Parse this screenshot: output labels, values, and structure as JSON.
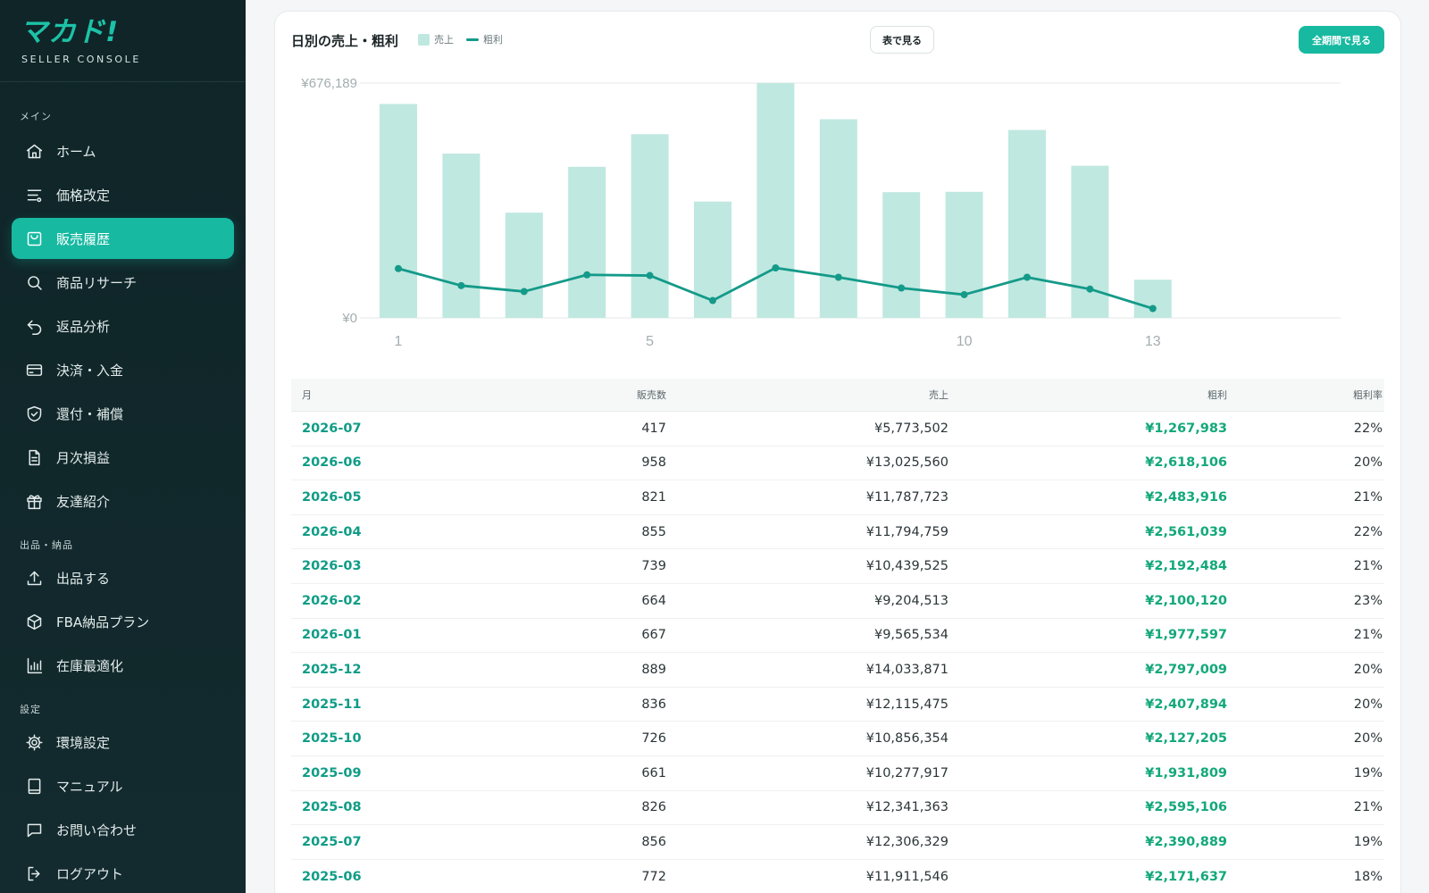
{
  "brand": {
    "logo": "マカド!",
    "subtitle": "SELLER CONSOLE"
  },
  "sidebar": {
    "sections": [
      {
        "label": "メイン"
      },
      {
        "label": "出品・納品"
      },
      {
        "label": "設定"
      }
    ],
    "items": [
      {
        "label": "ホーム",
        "icon": "home-icon"
      },
      {
        "label": "価格改定",
        "icon": "sliders-icon"
      },
      {
        "label": "販売履歴",
        "icon": "shopping-bag-icon",
        "active": true
      },
      {
        "label": "商品リサーチ",
        "icon": "search-icon"
      },
      {
        "label": "返品分析",
        "icon": "undo-icon"
      },
      {
        "label": "決済・入金",
        "icon": "credit-card-icon"
      },
      {
        "label": "還付・補償",
        "icon": "shield-check-icon"
      },
      {
        "label": "月次損益",
        "icon": "document-icon"
      },
      {
        "label": "友達紹介",
        "icon": "gift-icon"
      },
      {
        "label": "出品する",
        "icon": "upload-icon"
      },
      {
        "label": "FBA納品プラン",
        "icon": "box-icon"
      },
      {
        "label": "在庫最適化",
        "icon": "bar-chart-icon"
      },
      {
        "label": "環境設定",
        "icon": "gear-icon"
      },
      {
        "label": "マニュアル",
        "icon": "book-icon"
      },
      {
        "label": "お問い合わせ",
        "icon": "chat-icon"
      },
      {
        "label": "ログアウト",
        "icon": "logout-icon"
      }
    ]
  },
  "panel": {
    "title": "日別の売上・粗利",
    "legend_sales": "売上",
    "legend_profit": "粗利",
    "table_button": "表で見る",
    "all_period_button": "全期間で見る"
  },
  "colors": {
    "accent": "#17b9a1",
    "bar": "#bfe8e0",
    "line": "#149a89",
    "profit_text": "#13a87a"
  },
  "chart_data": {
    "type": "bar",
    "title": "日別の売上・粗利",
    "x": [
      1,
      2,
      3,
      4,
      5,
      6,
      7,
      8,
      9,
      10,
      11,
      12,
      13
    ],
    "x_tick_labels": [
      "1",
      "5",
      "10",
      "13"
    ],
    "x_ticks": [
      1,
      5,
      10,
      13
    ],
    "y_tick_labels": [
      "¥676,189",
      "¥0"
    ],
    "ylim": [
      0,
      676189
    ],
    "series": [
      {
        "name": "売上",
        "type": "bar",
        "values": [
          616000,
          473000,
          303000,
          435000,
          529000,
          335000,
          676189,
          572000,
          362000,
          363000,
          541000,
          438000,
          110000
        ]
      },
      {
        "name": "粗利",
        "type": "line",
        "values": [
          142000,
          93000,
          76000,
          124000,
          122000,
          50000,
          144000,
          117000,
          86000,
          67000,
          117000,
          83000,
          27000
        ]
      }
    ],
    "grid": true,
    "legend": "top-left"
  },
  "table": {
    "headers": {
      "month": "月",
      "sold": "販売数",
      "sales": "売上",
      "profit": "粗利",
      "rate": "粗利率"
    },
    "rows": [
      {
        "month": "2026-07",
        "sold": "417",
        "sales": "¥5,773,502",
        "profit": "¥1,267,983",
        "rate": "22%"
      },
      {
        "month": "2026-06",
        "sold": "958",
        "sales": "¥13,025,560",
        "profit": "¥2,618,106",
        "rate": "20%"
      },
      {
        "month": "2026-05",
        "sold": "821",
        "sales": "¥11,787,723",
        "profit": "¥2,483,916",
        "rate": "21%"
      },
      {
        "month": "2026-04",
        "sold": "855",
        "sales": "¥11,794,759",
        "profit": "¥2,561,039",
        "rate": "22%"
      },
      {
        "month": "2026-03",
        "sold": "739",
        "sales": "¥10,439,525",
        "profit": "¥2,192,484",
        "rate": "21%"
      },
      {
        "month": "2026-02",
        "sold": "664",
        "sales": "¥9,204,513",
        "profit": "¥2,100,120",
        "rate": "23%"
      },
      {
        "month": "2026-01",
        "sold": "667",
        "sales": "¥9,565,534",
        "profit": "¥1,977,597",
        "rate": "21%"
      },
      {
        "month": "2025-12",
        "sold": "889",
        "sales": "¥14,033,871",
        "profit": "¥2,797,009",
        "rate": "20%"
      },
      {
        "month": "2025-11",
        "sold": "836",
        "sales": "¥12,115,475",
        "profit": "¥2,407,894",
        "rate": "20%"
      },
      {
        "month": "2025-10",
        "sold": "726",
        "sales": "¥10,856,354",
        "profit": "¥2,127,205",
        "rate": "20%"
      },
      {
        "month": "2025-09",
        "sold": "661",
        "sales": "¥10,277,917",
        "profit": "¥1,931,809",
        "rate": "19%"
      },
      {
        "month": "2025-08",
        "sold": "826",
        "sales": "¥12,341,363",
        "profit": "¥2,595,106",
        "rate": "21%"
      },
      {
        "month": "2025-07",
        "sold": "856",
        "sales": "¥12,306,329",
        "profit": "¥2,390,889",
        "rate": "19%"
      },
      {
        "month": "2025-06",
        "sold": "772",
        "sales": "¥11,911,546",
        "profit": "¥2,171,637",
        "rate": "18%"
      }
    ]
  }
}
